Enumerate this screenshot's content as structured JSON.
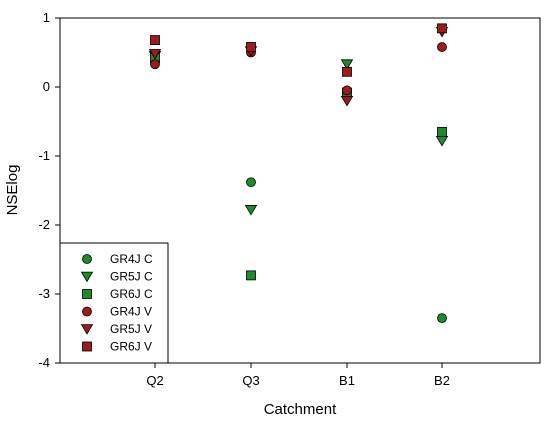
{
  "chart_data": {
    "type": "scatter",
    "xlabel": "Catchment",
    "ylabel": "NSElog",
    "categories": [
      "Q2",
      "Q3",
      "B1",
      "B2"
    ],
    "ylim": [
      -4,
      1
    ],
    "yticks": [
      1,
      0,
      -1,
      -2,
      -3,
      -4
    ],
    "ytick_labels": [
      "1",
      "0",
      "-1",
      "-2",
      "-3",
      "-4"
    ],
    "grid": false,
    "legend_position": "bottom-left",
    "series": [
      {
        "name": "GR4J C",
        "marker": "circle",
        "color": "#1f8a2a",
        "values": [
          0.38,
          -1.38,
          -0.12,
          -3.35
        ]
      },
      {
        "name": "GR5J C",
        "marker": "triangle-down",
        "color": "#1f8a2a",
        "values": [
          0.45,
          -1.78,
          0.33,
          -0.78
        ]
      },
      {
        "name": "GR6J C",
        "marker": "square",
        "color": "#1f8a2a",
        "values": [
          0.42,
          -2.73,
          -0.08,
          -0.65
        ]
      },
      {
        "name": "GR4J V",
        "marker": "circle",
        "color": "#9e1b1b",
        "values": [
          0.33,
          0.5,
          -0.05,
          0.58
        ]
      },
      {
        "name": "GR5J V",
        "marker": "triangle-down",
        "color": "#9e1b1b",
        "values": [
          0.48,
          0.52,
          -0.2,
          0.8
        ]
      },
      {
        "name": "GR6J V",
        "marker": "square",
        "color": "#9e1b1b",
        "values": [
          0.68,
          0.58,
          0.22,
          0.85
        ]
      }
    ]
  }
}
